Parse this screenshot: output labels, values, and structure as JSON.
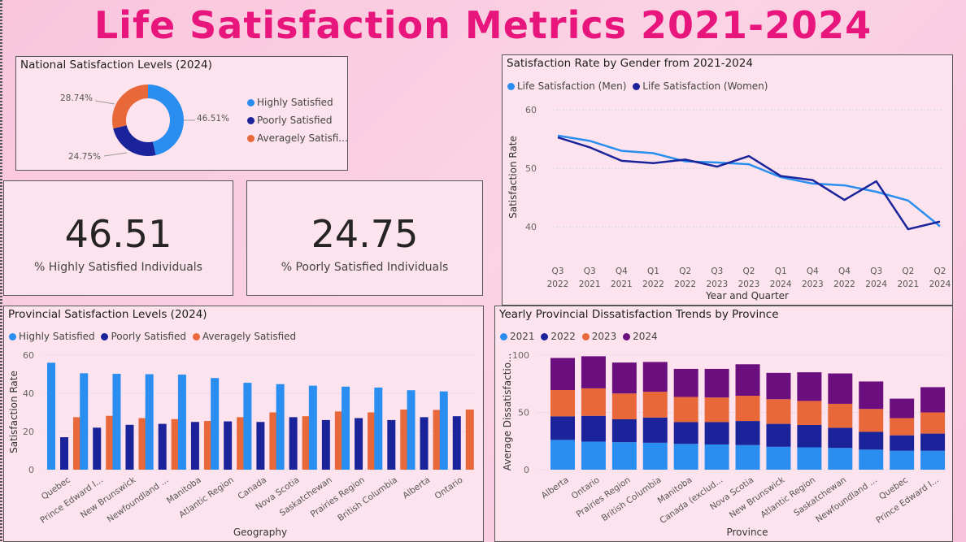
{
  "page": {
    "title": "Life Satisfaction Metrics 2021-2024"
  },
  "colors": {
    "highly": "#2a8ef0",
    "poorly": "#1a239a",
    "average": "#e8683a",
    "y2021": "#2a8ef0",
    "y2022": "#1a239a",
    "y2023": "#e8683a",
    "y2024": "#6a0f7d",
    "title": "#e8157c"
  },
  "donut": {
    "title": "National Satisfaction Levels (2024)",
    "legend": [
      "Highly Satisfied",
      "Poorly Satisfied",
      "Averagely Satisfi..."
    ]
  },
  "kpi1": {
    "value": "46.51",
    "label": "% Highly Satisfied Individuals"
  },
  "kpi2": {
    "value": "24.75",
    "label": "% Poorly Satisfied Individuals"
  },
  "line": {
    "title": "Satisfaction Rate by Gender from 2021-2024",
    "legend": [
      "Life Satisfaction (Men)",
      "Life Satisfaction (Women)"
    ]
  },
  "provincial": {
    "title": "Provincial Satisfaction Levels (2024)",
    "legend": [
      "Highly Satisfied",
      "Poorly Satisfied",
      "Averagely Satisfied"
    ]
  },
  "yearly": {
    "title": "Yearly Provincial Dissatisfaction Trends by Province",
    "legend": [
      "2021",
      "2022",
      "2023",
      "2024"
    ]
  },
  "chart_data": [
    {
      "type": "pie",
      "title": "National Satisfaction Levels (2024)",
      "categories": [
        "Highly Satisfied",
        "Poorly Satisfied",
        "Averagely Satisfied"
      ],
      "values": [
        46.51,
        24.75,
        28.74
      ],
      "labels": [
        "46.51%",
        "24.75%",
        "28.74%"
      ]
    },
    {
      "type": "line",
      "title": "Satisfaction Rate by Gender from 2021-2024",
      "xlabel": "Year and Quarter",
      "ylabel": "Satisfaction Rate",
      "x": [
        [
          "Q3",
          "2022"
        ],
        [
          "Q3",
          "2021"
        ],
        [
          "Q4",
          "2021"
        ],
        [
          "Q1",
          "2022"
        ],
        [
          "Q2",
          "2022"
        ],
        [
          "Q3",
          "2023"
        ],
        [
          "Q2",
          "2023"
        ],
        [
          "Q1",
          "2024"
        ],
        [
          "Q4",
          "2023"
        ],
        [
          "Q4",
          "2022"
        ],
        [
          "Q3",
          "2024"
        ],
        [
          "Q2",
          "2021"
        ],
        [
          "Q2",
          "2024"
        ]
      ],
      "yticks": [
        40,
        50,
        60
      ],
      "ylim": [
        36,
        61
      ],
      "series": [
        {
          "name": "Life Satisfaction (Men)",
          "values": [
            55.6,
            54.7,
            53.0,
            52.6,
            51.2,
            51.0,
            50.7,
            48.5,
            47.4,
            47.1,
            46.0,
            44.5,
            40.1
          ]
        },
        {
          "name": "Life Satisfaction (Women)",
          "values": [
            55.3,
            53.6,
            51.3,
            50.9,
            51.5,
            50.3,
            52.1,
            48.7,
            48.0,
            44.6,
            47.8,
            39.6,
            40.9
          ]
        }
      ]
    },
    {
      "type": "bar",
      "title": "Provincial Satisfaction Levels (2024)",
      "xlabel": "Geography",
      "ylabel": "Satisfaction Rate",
      "categories": [
        "Quebec",
        "Prince Edward I...",
        "New Brunswick",
        "Newfoundland ...",
        "Manitoba",
        "Atlantic Region",
        "Canada",
        "Nova Scotia",
        "Saskatchewan",
        "Prairies Region",
        "British Columbia",
        "Alberta",
        "Ontario"
      ],
      "yticks": [
        0,
        20,
        40,
        60
      ],
      "ylim": [
        0,
        60
      ],
      "series": [
        {
          "name": "Highly Satisfied",
          "values": [
            56,
            50.5,
            50.2,
            50,
            49.8,
            48,
            45.5,
            44.8,
            44,
            43.5,
            43,
            41.6,
            41
          ]
        },
        {
          "name": "Poorly Satisfied",
          "values": [
            17,
            22,
            23.5,
            24,
            25,
            25.3,
            25,
            27.5,
            26,
            27,
            26,
            27.5,
            28
          ]
        },
        {
          "name": "Averagely Satisfied",
          "values": [
            27.5,
            28.2,
            27,
            26.5,
            25.5,
            27.5,
            30,
            28,
            30.5,
            30,
            31.5,
            31.3,
            31.5
          ]
        }
      ]
    },
    {
      "type": "bar",
      "stacked": true,
      "title": "Yearly Provincial Dissatisfaction Trends by Province",
      "xlabel": "Province",
      "ylabel": "Average Dissatisfactio...",
      "categories": [
        "Alberta",
        "Ontario",
        "Prairies Region",
        "British Columbia",
        "Manitoba",
        "Canada (exclud...",
        "Nova Scotia",
        "New Brunswick",
        "Atlantic Region",
        "Saskatchewan",
        "Newfoundland ...",
        "Quebec",
        "Prince Edward I..."
      ],
      "yticks": [
        0,
        50,
        100
      ],
      "ylim": [
        0,
        100
      ],
      "series": [
        {
          "name": "2021",
          "values": [
            26,
            24.5,
            24,
            23.5,
            22.5,
            22,
            21.5,
            20,
            19.5,
            19,
            17.5,
            16.5,
            16.5
          ]
        },
        {
          "name": "2022",
          "values": [
            20.5,
            22.5,
            20,
            22,
            19,
            19.5,
            21,
            20,
            19.5,
            17.5,
            15.5,
            13.5,
            15
          ]
        },
        {
          "name": "2023",
          "values": [
            23,
            24,
            22.5,
            22.5,
            22,
            21.5,
            22,
            21.5,
            21,
            21,
            20,
            15,
            18.5
          ]
        },
        {
          "name": "2024",
          "values": [
            28,
            28,
            27,
            26,
            24.5,
            25,
            27.5,
            23,
            25,
            26.5,
            24,
            17,
            22
          ]
        }
      ]
    }
  ]
}
